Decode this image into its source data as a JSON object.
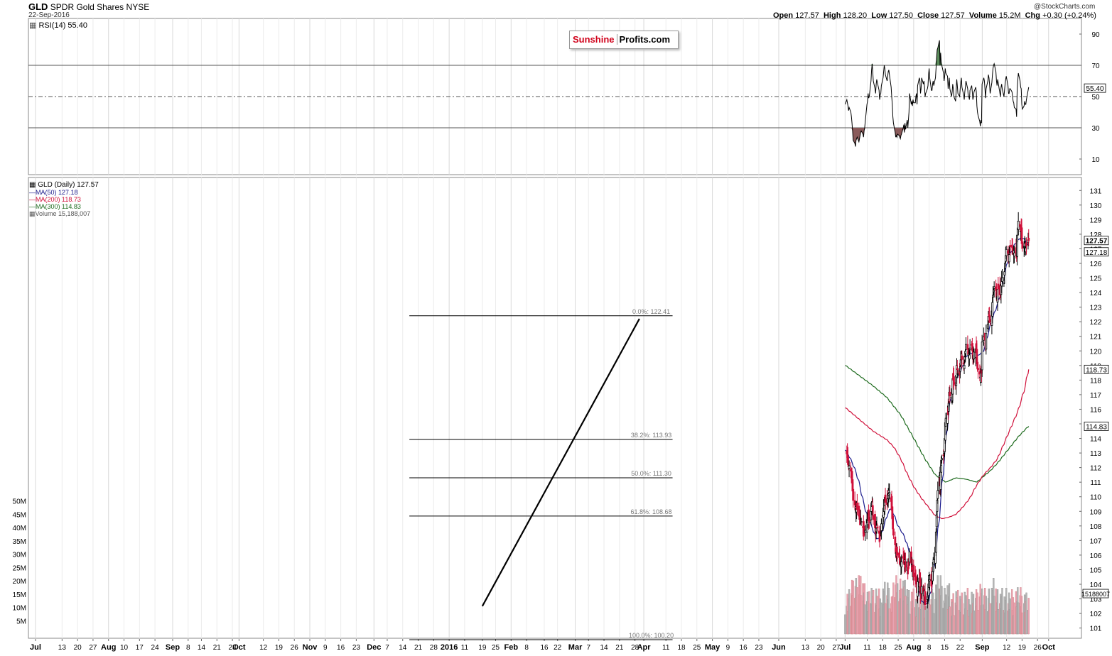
{
  "header": {
    "symbol": "GLD",
    "name": "SPDR Gold Shares",
    "exchange": "NYSE",
    "date": "22-Sep-2016",
    "copyright": "@StockCharts.com",
    "open_label": "Open",
    "open": "127.57",
    "high_label": "High",
    "high": "128.20",
    "low_label": "Low",
    "low": "127.50",
    "close_label": "Close",
    "close": "127.57",
    "volume_label": "Volume",
    "volume": "15.2M",
    "chg_label": "Chg",
    "chg": "+0.30 (+0.24%)"
  },
  "logo": {
    "part1": "Sunshine",
    "part2": "Profits.com"
  },
  "colors": {
    "up": "#000000",
    "down": "#d0103a",
    "ma50": "#1a1a8c",
    "ma200": "#d0103a",
    "ma300": "#1e6b1e",
    "vol_down": "#e9a3b2",
    "vol_up": "#b5b5b5",
    "rsi_over": "#5a8a5a",
    "rsi_under": "#8a5a5a"
  },
  "chart_data": [
    {
      "type": "line",
      "title": "RSI(14) 55.40",
      "series": [
        {
          "name": "RSI(14)",
          "last": 55.4
        }
      ],
      "y_ticks": [
        10,
        30,
        50,
        70,
        90
      ],
      "ylim": [
        0,
        100
      ],
      "reference_lines": [
        30,
        50,
        70
      ],
      "last_label": "55.40",
      "rsi_values": [
        45,
        48,
        46,
        44,
        41,
        43,
        40,
        37,
        33,
        28,
        22,
        20,
        18,
        22,
        23,
        24,
        21,
        23,
        25,
        27,
        28,
        26,
        24,
        28,
        30,
        34,
        45,
        47,
        52,
        49,
        50,
        60,
        67,
        71,
        66,
        60,
        55,
        52,
        58,
        61,
        59,
        54,
        48,
        51,
        52,
        57,
        62,
        66,
        70,
        68,
        64,
        60,
        63,
        66,
        67,
        64,
        56,
        50,
        45,
        37,
        33,
        27,
        24,
        25,
        24,
        26,
        25,
        24,
        23,
        25,
        26,
        30,
        32,
        27,
        33,
        29,
        35,
        30,
        35,
        40,
        52,
        45,
        47,
        44,
        48,
        46,
        46,
        50,
        52,
        45,
        57,
        62,
        60,
        52,
        55,
        62,
        58,
        60,
        56,
        50,
        52,
        55,
        57,
        64,
        68,
        62,
        54,
        54,
        58,
        60,
        57,
        62,
        68,
        75,
        80,
        81,
        86,
        70,
        78,
        72,
        70,
        65,
        60,
        63,
        68,
        65,
        63,
        55,
        58,
        62,
        55,
        50,
        53,
        58,
        55,
        50,
        47,
        54,
        61,
        57,
        52,
        50,
        55,
        59,
        62,
        56,
        51,
        48,
        53,
        56,
        60,
        55,
        50,
        50,
        48,
        54,
        57,
        53,
        48,
        50,
        53,
        56,
        53,
        44,
        40,
        38,
        34,
        31,
        35,
        33,
        58,
        62,
        60,
        55,
        49,
        55,
        60,
        64,
        62,
        58,
        52,
        59,
        64,
        68,
        70,
        71,
        66,
        60,
        57,
        61,
        59,
        52,
        50,
        56,
        58,
        55,
        50,
        54,
        58,
        61,
        63,
        57,
        52,
        52,
        55,
        55,
        53,
        50,
        47,
        46,
        43,
        42,
        37,
        55,
        60,
        65,
        60,
        56,
        55,
        45,
        42,
        44,
        47,
        45,
        45,
        48,
        54,
        56
      ],
      "rsi_first_day": "2016-07-01"
    },
    {
      "type": "candlestick",
      "title": "GLD (Daily) 127.57",
      "series": [
        {
          "name": "MA(50) 127.18",
          "last": 127.18
        },
        {
          "name": "MA(200) 118.73",
          "last": 118.73
        },
        {
          "name": "MA(300) 114.83",
          "last": 114.83
        },
        {
          "name": "Volume 15,188,007",
          "last": 15188007
        }
      ],
      "y_ticks": [
        101,
        102,
        103,
        104,
        105,
        106,
        107,
        108,
        109,
        110,
        111,
        112,
        113,
        114,
        115,
        116,
        117,
        118,
        119,
        120,
        121,
        122,
        123,
        124,
        125,
        126,
        127,
        128,
        129,
        130,
        131
      ],
      "ylim": [
        100.3,
        131.5
      ],
      "last_labels": [
        "127.57",
        "127.18",
        "118.73",
        "114.83"
      ],
      "volume_ticks": [
        "5M",
        "10M",
        "15M",
        "20M",
        "25M",
        "30M",
        "35M",
        "40M",
        "45M",
        "50M"
      ],
      "volume_last_label": "15188007",
      "fibonacci": [
        {
          "label": "0.0%: 122.41",
          "value": 122.41
        },
        {
          "label": "38.2%: 113.93",
          "value": 113.93
        },
        {
          "label": "50.0%: 111.30",
          "value": 111.3
        },
        {
          "label": "61.8%: 108.68",
          "value": 108.68
        },
        {
          "label": "100.0%: 100.20",
          "value": 100.2
        }
      ],
      "trendline": {
        "from": [
          "2016-01-19",
          102.5
        ],
        "to": [
          "2016-03-30",
          122.2
        ]
      },
      "ma50": [
        [
          0,
          113.2
        ],
        [
          10,
          112.8
        ],
        [
          20,
          112.3
        ],
        [
          30,
          111.7
        ],
        [
          40,
          110.9
        ],
        [
          50,
          109.8
        ],
        [
          60,
          108.9
        ],
        [
          70,
          108.3
        ],
        [
          80,
          107.7
        ],
        [
          90,
          107.1
        ],
        [
          100,
          107.2
        ],
        [
          110,
          107.9
        ],
        [
          120,
          108.7
        ],
        [
          130,
          109.2
        ],
        [
          140,
          108.8
        ],
        [
          150,
          108.1
        ],
        [
          160,
          107.7
        ],
        [
          170,
          107.3
        ],
        [
          180,
          106.6
        ],
        [
          190,
          105.8
        ],
        [
          200,
          104.7
        ],
        [
          210,
          103.6
        ],
        [
          220,
          102.9
        ],
        [
          230,
          102.6
        ],
        [
          240,
          102.8
        ],
        [
          250,
          103.8
        ],
        [
          260,
          105.7
        ],
        [
          270,
          108.2
        ],
        [
          280,
          110.9
        ],
        [
          290,
          113.7
        ],
        [
          300,
          116.0
        ],
        [
          310,
          117.4
        ],
        [
          320,
          118.0
        ],
        [
          330,
          118.4
        ],
        [
          340,
          119.0
        ],
        [
          350,
          119.6
        ],
        [
          360,
          119.9
        ],
        [
          370,
          119.7
        ],
        [
          380,
          119.6
        ],
        [
          390,
          119.8
        ],
        [
          400,
          120.0
        ],
        [
          410,
          120.9
        ],
        [
          420,
          121.8
        ],
        [
          430,
          122.5
        ],
        [
          440,
          123.2
        ],
        [
          450,
          124.0
        ],
        [
          460,
          125.1
        ],
        [
          470,
          126.2
        ],
        [
          480,
          126.8
        ],
        [
          490,
          127.3
        ],
        [
          500,
          127.6
        ],
        [
          510,
          127.8
        ],
        [
          520,
          127.6
        ],
        [
          530,
          127.18
        ]
      ],
      "ma200": [
        [
          0,
          116.1
        ],
        [
          20,
          115.7
        ],
        [
          40,
          115.3
        ],
        [
          60,
          114.9
        ],
        [
          80,
          114.5
        ],
        [
          100,
          114.2
        ],
        [
          120,
          113.9
        ],
        [
          140,
          113.4
        ],
        [
          160,
          112.6
        ],
        [
          180,
          111.5
        ],
        [
          200,
          110.6
        ],
        [
          220,
          109.9
        ],
        [
          240,
          109.3
        ],
        [
          260,
          108.7
        ],
        [
          280,
          108.5
        ],
        [
          300,
          108.6
        ],
        [
          320,
          108.8
        ],
        [
          340,
          109.3
        ],
        [
          360,
          109.9
        ],
        [
          380,
          110.8
        ],
        [
          400,
          111.5
        ],
        [
          420,
          112.0
        ],
        [
          440,
          112.6
        ],
        [
          460,
          113.7
        ],
        [
          480,
          114.8
        ],
        [
          500,
          115.9
        ],
        [
          520,
          117.5
        ],
        [
          530,
          118.73
        ]
      ],
      "ma300": [
        [
          0,
          119.0
        ],
        [
          40,
          118.3
        ],
        [
          80,
          117.6
        ],
        [
          120,
          116.8
        ],
        [
          160,
          115.6
        ],
        [
          200,
          113.9
        ],
        [
          230,
          112.6
        ],
        [
          260,
          111.5
        ],
        [
          290,
          111.0
        ],
        [
          320,
          111.3
        ],
        [
          350,
          111.2
        ],
        [
          380,
          111.0
        ],
        [
          400,
          111.4
        ],
        [
          420,
          111.8
        ],
        [
          440,
          112.3
        ],
        [
          460,
          112.9
        ],
        [
          480,
          113.5
        ],
        [
          500,
          114.1
        ],
        [
          520,
          114.6
        ],
        [
          530,
          114.83
        ]
      ]
    }
  ],
  "x_axis": {
    "labels": [
      "Jul",
      "13",
      "20",
      "27",
      "Aug",
      "10",
      "17",
      "24",
      "Sep",
      "8",
      "14",
      "21",
      "28",
      "Oct",
      "12",
      "19",
      "26",
      "Nov",
      "9",
      "16",
      "23",
      "Dec",
      "7",
      "14",
      "21",
      "28",
      "2016",
      "11",
      "19",
      "25",
      "Feb",
      "8",
      "16",
      "22",
      "Mar",
      "7",
      "14",
      "21",
      "28",
      "Apr",
      "11",
      "18",
      "25",
      "May",
      "9",
      "16",
      "23",
      "Jun",
      "13",
      "20",
      "27",
      "Jul",
      "11",
      "18",
      "25",
      "Aug",
      "8",
      "15",
      "22",
      "Sep",
      "12",
      "19",
      "26",
      "Oct"
    ],
    "bold": [
      "Jul",
      "Aug",
      "Sep",
      "Oct",
      "Nov",
      "Dec",
      "2016",
      "Feb",
      "Mar",
      "Apr",
      "May",
      "Jun"
    ]
  }
}
